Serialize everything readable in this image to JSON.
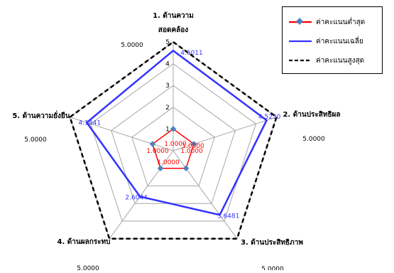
{
  "colors": {
    "min": "#ff0000",
    "min_marker": "#4f81bd",
    "avg": "#3333ff",
    "max": "#000000",
    "grid": "#a6a6a6"
  },
  "chart_data": {
    "type": "radar",
    "categories": [
      "1. ด้านความ สอดคล้อง",
      "2. ด้านประสิทธิผล",
      "3. ด้านประสิทธิภาพ",
      "4. ด้านผลกระทบ",
      "5. ด้านความยั่งยืน"
    ],
    "category_lines": [
      [
        "1. ด้านความ",
        "สอดคล้อง"
      ],
      [
        "2. ด้านประสิทธิผล"
      ],
      [
        "3. ด้านประสิทธิภาพ"
      ],
      [
        "4. ด้านผลกระทบ"
      ],
      [
        "5. ด้านความยั่งยืน"
      ]
    ],
    "rlim": [
      0,
      5
    ],
    "ticks": [
      "1",
      "2",
      "3",
      "4",
      "5"
    ],
    "series": [
      {
        "name": "ค่าคะแนนต่ำสุด",
        "values": [
          1,
          1,
          1,
          1,
          1
        ],
        "labels": [
          "1.0000",
          "1.0000",
          "1.0000",
          "1.0000",
          "1.0000"
        ]
      },
      {
        "name": "ค่าคะแนนเฉลี่ย",
        "values": [
          4.6011,
          4.523,
          3.6481,
          2.6044,
          4.1841
        ],
        "labels": [
          "4.6011",
          "4.5230",
          "3.6481",
          "2.6044",
          "4.1841"
        ]
      },
      {
        "name": "ค่าคะแนนสูงสุด",
        "values": [
          5,
          5,
          5,
          5,
          5
        ],
        "labels": [
          "5.0000",
          "5.0000",
          "5.0000",
          "5.0000",
          "5.0000"
        ]
      }
    ],
    "legend_position": "top-right",
    "grid": true
  }
}
